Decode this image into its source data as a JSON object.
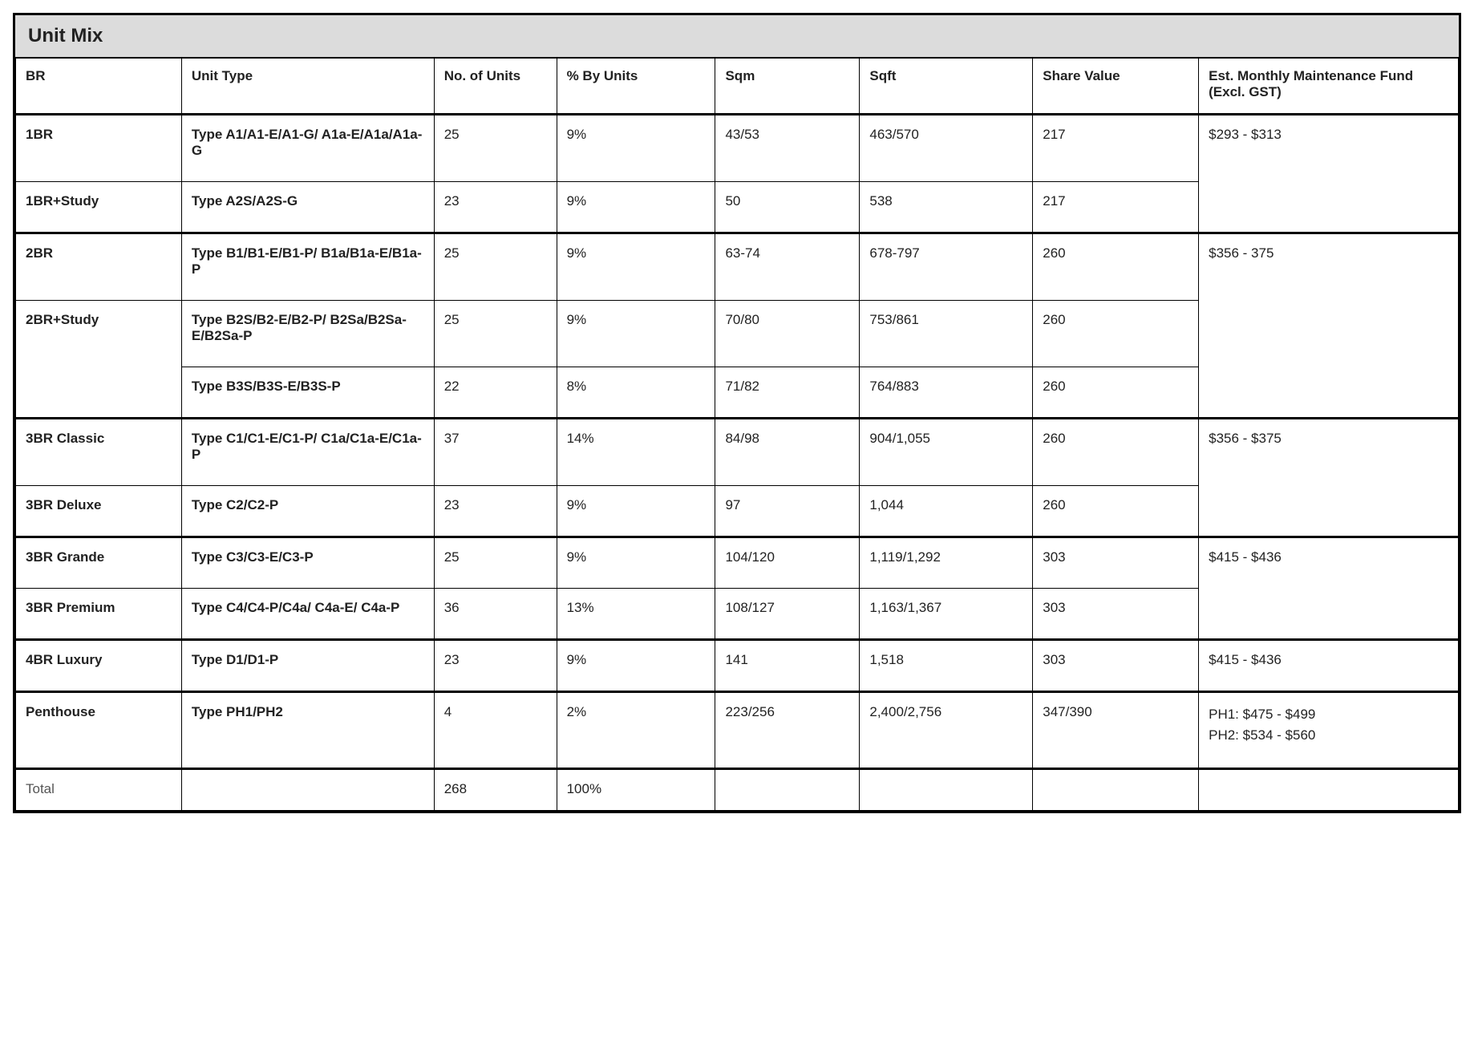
{
  "table": {
    "title": "Unit Mix",
    "title_fontsize": 24,
    "title_bg": "#dcdcdc",
    "border_color": "#000000",
    "background_color": "#ffffff",
    "header_fontsize": 17,
    "cell_fontsize": 17,
    "columns": [
      {
        "key": "br",
        "label": "BR",
        "width_pct": 11.5
      },
      {
        "key": "unit_type",
        "label": "Unit Type",
        "width_pct": 17.5
      },
      {
        "key": "no_units",
        "label": "No. of Units",
        "width_pct": 8.5
      },
      {
        "key": "pct_units",
        "label": "% By Units",
        "width_pct": 11
      },
      {
        "key": "sqm",
        "label": "Sqm",
        "width_pct": 10
      },
      {
        "key": "sqft",
        "label": "Sqft",
        "width_pct": 12
      },
      {
        "key": "share_value",
        "label": "Share Value",
        "width_pct": 11.5
      },
      {
        "key": "maintenance",
        "label": "Est. Monthly Maintenance Fund (Excl. GST)",
        "width_pct": 18
      }
    ],
    "groups": [
      {
        "maintenance": "$293 - $313",
        "rows": [
          {
            "br": "1BR",
            "unit_type": "Type A1/A1-E/A1-G/ A1a-E/A1a/A1a-G",
            "no_units": "25",
            "pct_units": "9%",
            "sqm": "43/53",
            "sqft": "463/570",
            "share_value": "217"
          },
          {
            "br": "1BR+Study",
            "unit_type": "Type A2S/A2S-G",
            "no_units": "23",
            "pct_units": "9%",
            "sqm": "50",
            "sqft": "538",
            "share_value": "217"
          }
        ]
      },
      {
        "maintenance": "$356 - 375",
        "rows": [
          {
            "br": "2BR",
            "unit_type": "Type B1/B1-E/B1-P/ B1a/B1a-E/B1a-P",
            "no_units": "25",
            "pct_units": "9%",
            "sqm": "63-74",
            "sqft": "678-797",
            "share_value": "260"
          },
          {
            "br": "2BR+Study",
            "br_rowspan": 2,
            "unit_type": "Type B2S/B2-E/B2-P/ B2Sa/B2Sa-E/B2Sa-P",
            "no_units": "25",
            "pct_units": "9%",
            "sqm": "70/80",
            "sqft": "753/861",
            "share_value": "260"
          },
          {
            "unit_type": "Type B3S/B3S-E/B3S-P",
            "no_units": "22",
            "pct_units": "8%",
            "sqm": "71/82",
            "sqft": "764/883",
            "share_value": "260"
          }
        ]
      },
      {
        "maintenance": "$356 - $375",
        "rows": [
          {
            "br": "3BR Classic",
            "unit_type": "Type C1/C1-E/C1-P/ C1a/C1a-E/C1a-P",
            "no_units": "37",
            "pct_units": "14%",
            "sqm": "84/98",
            "sqft": "904/1,055",
            "share_value": "260"
          },
          {
            "br": "3BR Deluxe",
            "unit_type": "Type C2/C2-P",
            "no_units": "23",
            "pct_units": "9%",
            "sqm": "97",
            "sqft": "1,044",
            "share_value": "260"
          }
        ]
      },
      {
        "maintenance": "$415 - $436",
        "rows": [
          {
            "br": "3BR Grande",
            "unit_type": "Type C3/C3-E/C3-P",
            "no_units": "25",
            "pct_units": "9%",
            "sqm": "104/120",
            "sqft": "1,119/1,292",
            "share_value": "303"
          },
          {
            "br": "3BR Premium",
            "unit_type": "Type C4/C4-P/C4a/ C4a-E/ C4a-P",
            "no_units": "36",
            "pct_units": "13%",
            "sqm": "108/127",
            "sqft": "1,163/1,367",
            "share_value": "303"
          }
        ]
      },
      {
        "maintenance": "$415 - $436",
        "rows": [
          {
            "br": "4BR Luxury",
            "unit_type": "Type D1/D1-P",
            "no_units": "23",
            "pct_units": "9%",
            "sqm": "141",
            "sqft": "1,518",
            "share_value": "303"
          }
        ]
      },
      {
        "maintenance_lines": [
          "PH1: $475 - $499",
          "PH2: $534 - $560"
        ],
        "rows": [
          {
            "br": "Penthouse",
            "unit_type": "Type PH1/PH2",
            "no_units": "4",
            "pct_units": "2%",
            "sqm": "223/256",
            "sqft": "2,400/2,756",
            "share_value": "347/390"
          }
        ]
      }
    ],
    "total": {
      "label": "Total",
      "no_units": "268",
      "pct_units": "100%"
    }
  }
}
